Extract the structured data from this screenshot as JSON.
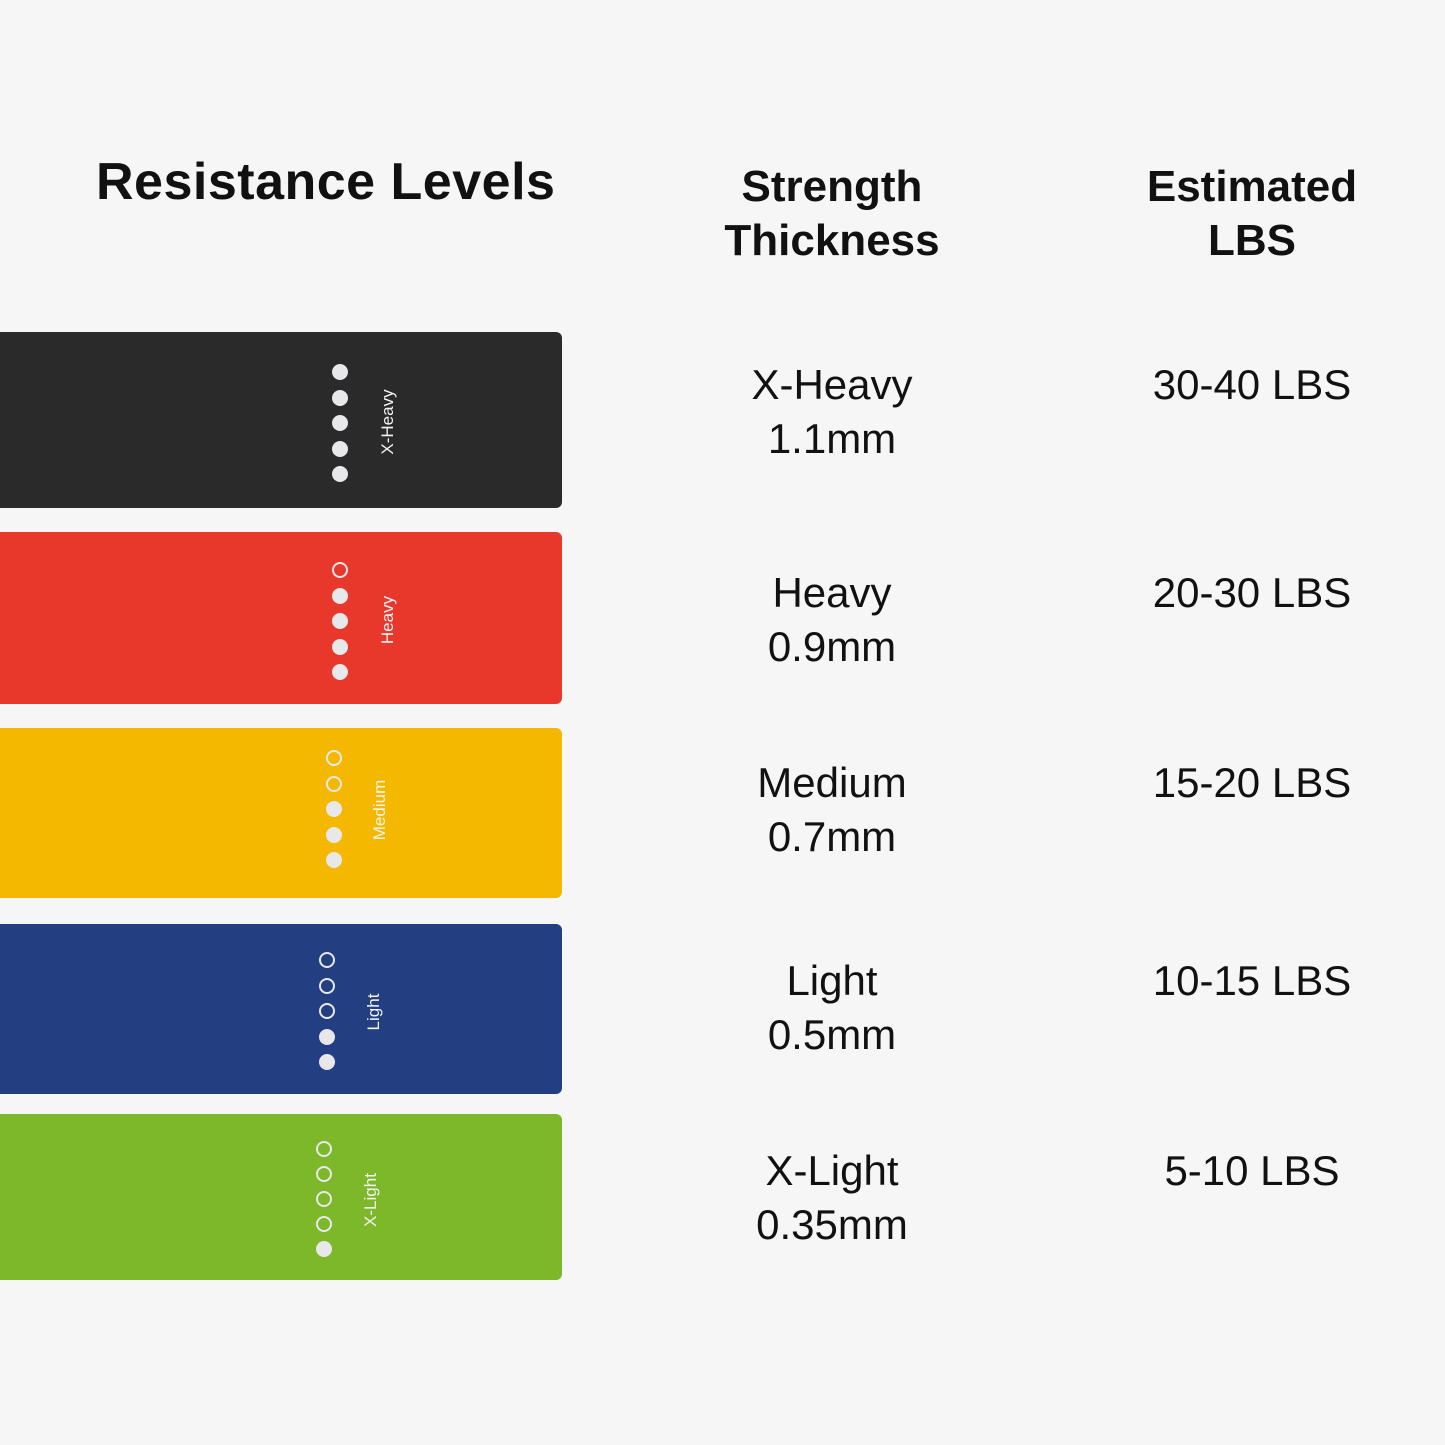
{
  "title": "Resistance Levels",
  "columns": {
    "strength": [
      "Strength",
      "Thickness"
    ],
    "lbs": [
      "Estimated",
      "LBS"
    ]
  },
  "bands": [
    {
      "level": "X-Heavy",
      "thickness": "1.1mm",
      "lbs": "30-40 LBS",
      "color": "#2a2a2a",
      "filled_dots": 5,
      "total_dots": 5
    },
    {
      "level": "Heavy",
      "thickness": "0.9mm",
      "lbs": "20-30 LBS",
      "color": "#e8382c",
      "filled_dots": 4,
      "total_dots": 5
    },
    {
      "level": "Medium",
      "thickness": "0.7mm",
      "lbs": "15-20 LBS",
      "color": "#f5b800",
      "filled_dots": 3,
      "total_dots": 5
    },
    {
      "level": "Light",
      "thickness": "0.5mm",
      "lbs": "10-15 LBS",
      "color": "#243e82",
      "filled_dots": 2,
      "total_dots": 5
    },
    {
      "level": "X-Light",
      "thickness": "0.35mm",
      "lbs": "5-10 LBS",
      "color": "#7db72a",
      "filled_dots": 1,
      "total_dots": 5
    }
  ]
}
